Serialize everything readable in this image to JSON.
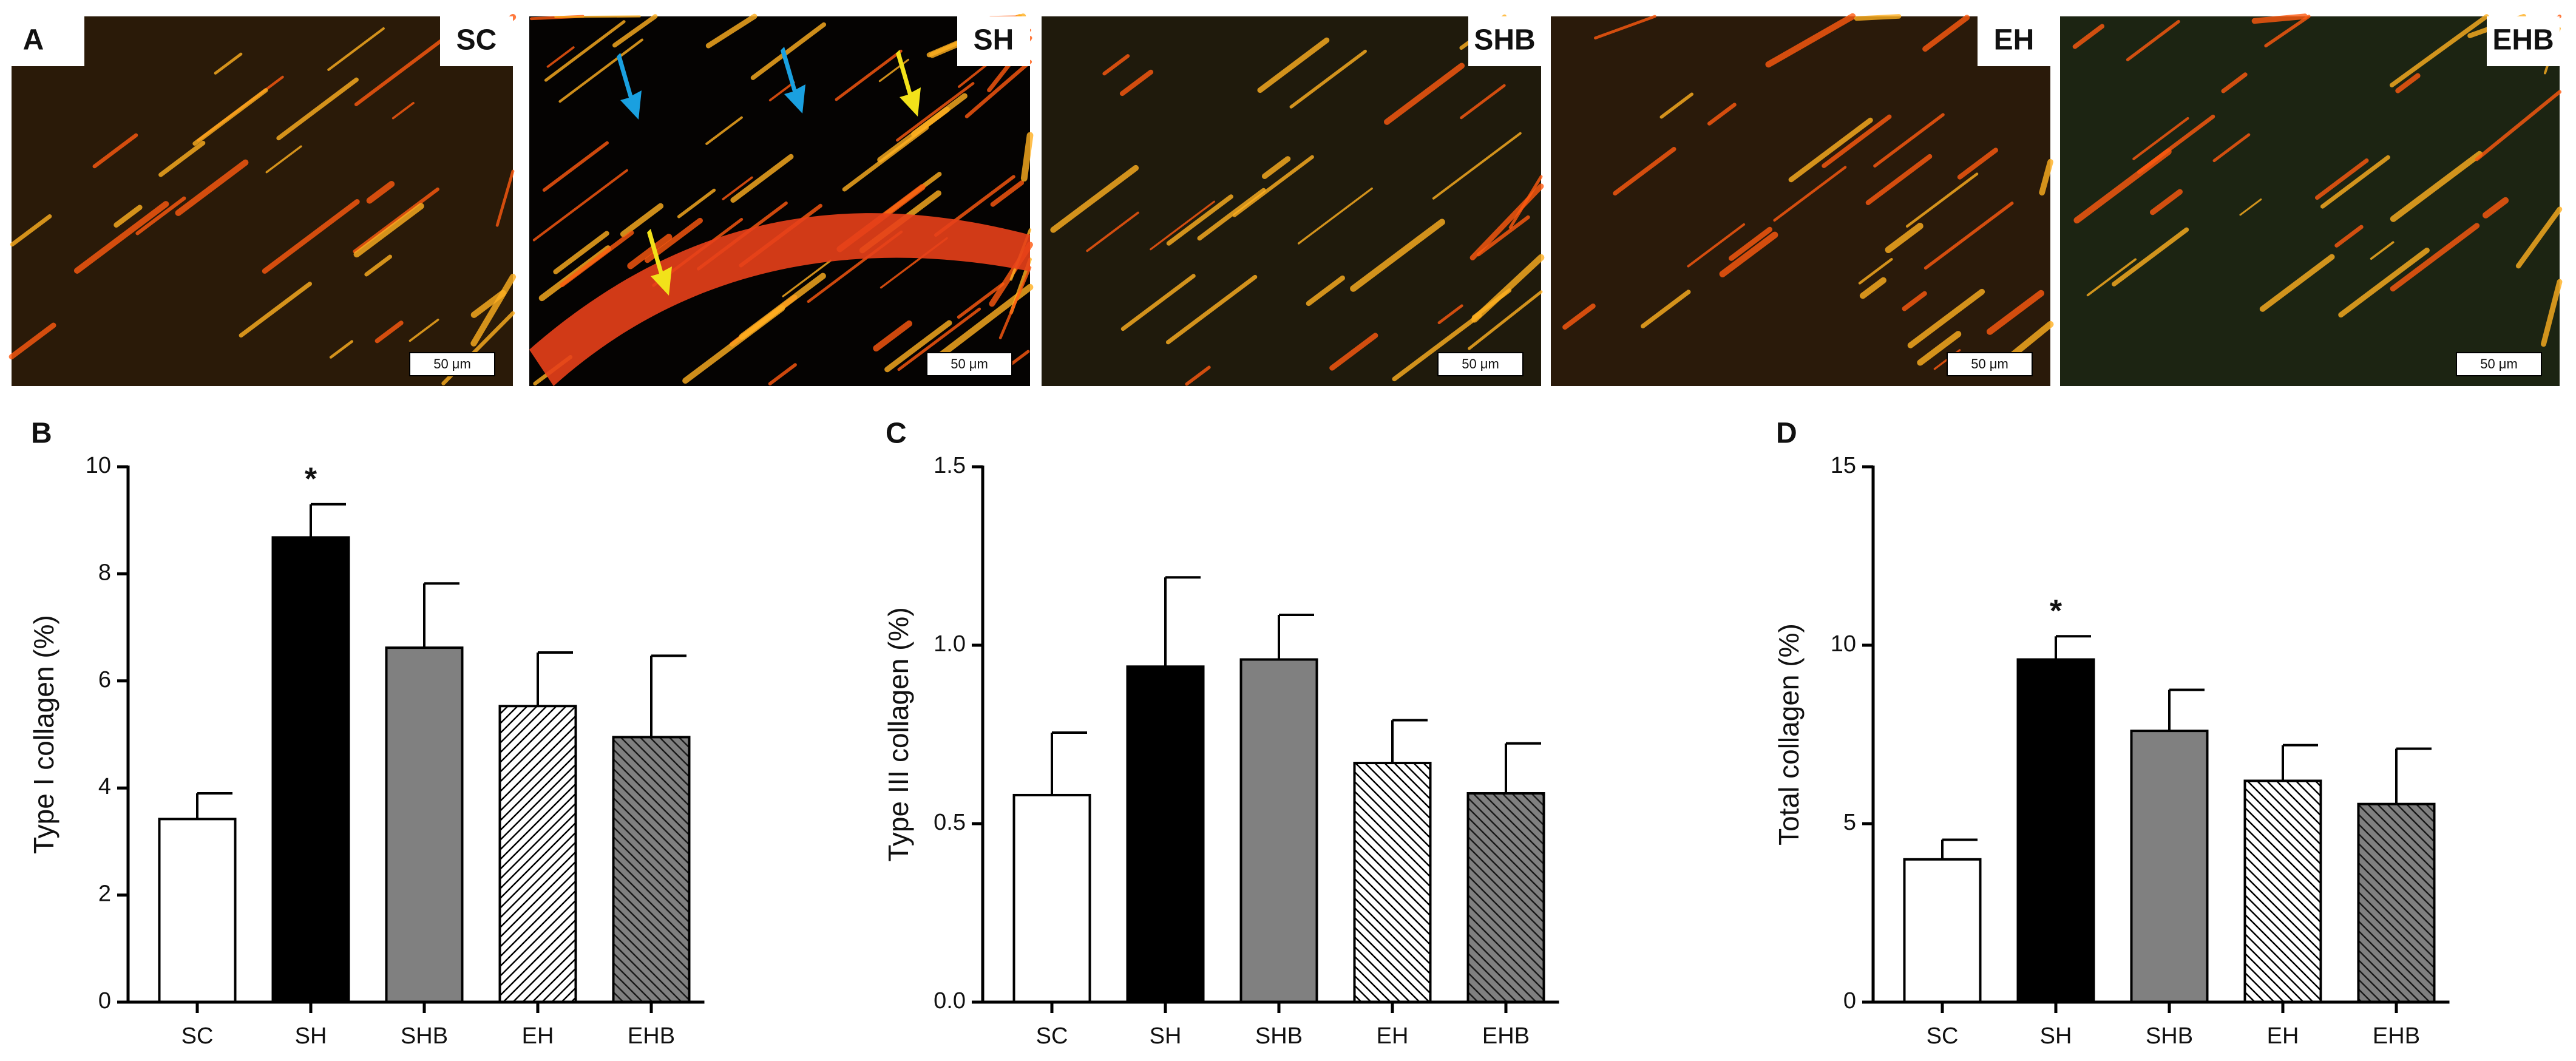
{
  "panel_a": {
    "label": "A",
    "images": [
      {
        "label": "SC",
        "scale_bar": "50 μm"
      },
      {
        "label": "SH",
        "scale_bar": "50 μm"
      },
      {
        "label": "SHB",
        "scale_bar": "50 μm"
      },
      {
        "label": "EH",
        "scale_bar": "50 μm"
      },
      {
        "label": "EHB",
        "scale_bar": "50 μm"
      }
    ]
  },
  "chart_data": [
    {
      "type": "bar",
      "panel_label": "B",
      "ylabel": "Type I collagen (%)",
      "categories": [
        "SC",
        "SH",
        "SHB",
        "EH",
        "EHB"
      ],
      "values": [
        3.42,
        8.68,
        6.62,
        5.53,
        4.95
      ],
      "errors": [
        0.48,
        0.62,
        1.2,
        1.0,
        1.52
      ],
      "markers": [
        null,
        "*",
        null,
        null,
        null
      ],
      "colors": [
        "#ffffff",
        "#000000",
        "#808080",
        "#ffffff",
        "#808080"
      ],
      "hatch": [
        null,
        null,
        null,
        "/",
        "\\"
      ],
      "ylim": [
        0,
        10
      ],
      "yticks": [
        0,
        2,
        4,
        6,
        8,
        10
      ]
    },
    {
      "type": "bar",
      "panel_label": "C",
      "ylabel": "Type III collagen (%)",
      "categories": [
        "SC",
        "SH",
        "SHB",
        "EH",
        "EHB"
      ],
      "values": [
        0.58,
        0.94,
        0.96,
        0.67,
        0.585
      ],
      "errors": [
        0.175,
        0.25,
        0.125,
        0.12,
        0.14
      ],
      "markers": [
        null,
        null,
        null,
        null,
        null
      ],
      "colors": [
        "#ffffff",
        "#000000",
        "#808080",
        "#ffffff",
        "#808080"
      ],
      "hatch": [
        null,
        null,
        null,
        "\\",
        "\\"
      ],
      "ylim": [
        0,
        1.5
      ],
      "yticks": [
        {
          "value": 0,
          "label": "0.0"
        },
        0.5,
        {
          "value": 1,
          "label": "1.0"
        },
        1.5
      ]
    },
    {
      "type": "bar",
      "panel_label": "D",
      "ylabel": "Total collagen (%)",
      "categories": [
        "SC",
        "SH",
        "SHB",
        "EH",
        "EHB"
      ],
      "values": [
        4.0,
        9.6,
        7.6,
        6.2,
        5.55
      ],
      "errors": [
        0.55,
        0.65,
        1.15,
        1.0,
        1.55
      ],
      "markers": [
        null,
        "*",
        null,
        null,
        null
      ],
      "colors": [
        "#ffffff",
        "#000000",
        "#808080",
        "#ffffff",
        "#808080"
      ],
      "hatch": [
        null,
        null,
        null,
        "\\",
        "\\"
      ],
      "ylim": [
        0,
        15
      ],
      "yticks": [
        0,
        5,
        10,
        15
      ]
    }
  ]
}
